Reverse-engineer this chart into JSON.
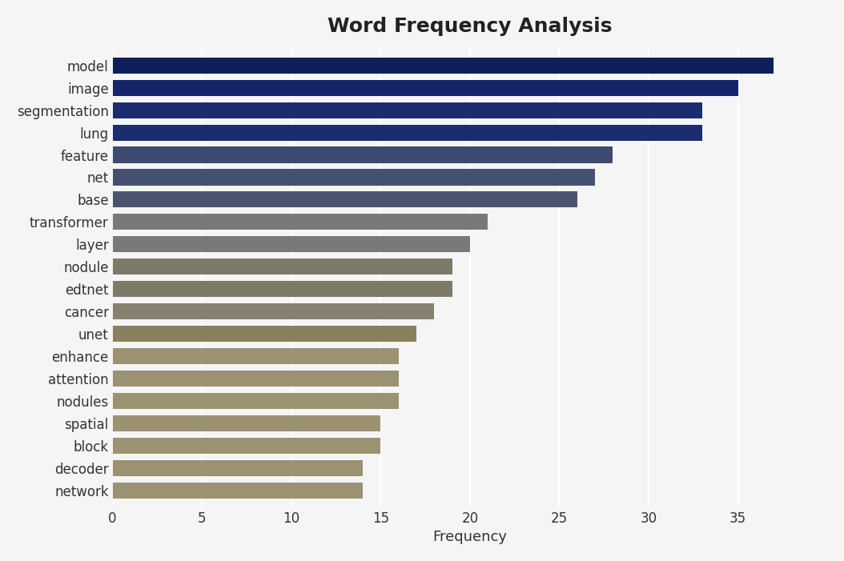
{
  "title": "Word Frequency Analysis",
  "xlabel": "Frequency",
  "categories": [
    "network",
    "decoder",
    "block",
    "spatial",
    "nodules",
    "attention",
    "enhance",
    "unet",
    "cancer",
    "edtnet",
    "nodule",
    "layer",
    "transformer",
    "base",
    "net",
    "feature",
    "lung",
    "segmentation",
    "image",
    "model"
  ],
  "values": [
    14,
    14,
    15,
    15,
    16,
    16,
    16,
    17,
    18,
    19,
    19,
    20,
    21,
    26,
    27,
    28,
    33,
    33,
    35,
    37
  ],
  "bar_colors": [
    "#9b9272",
    "#9b9272",
    "#9b9272",
    "#9b9272",
    "#9b9272",
    "#9b9272",
    "#9b9272",
    "#8a8060",
    "#858070",
    "#7e7a6a",
    "#7e7a6a",
    "#7a7878",
    "#7a7878",
    "#4a5572",
    "#465070",
    "#3d4b6e",
    "#1b2d6e",
    "#1b2d6e",
    "#162569",
    "#0f1f5c"
  ],
  "background_color": "#f5f5f5",
  "plot_bg_color": "#f0f0f0",
  "title_fontsize": 18,
  "axis_label_fontsize": 13,
  "tick_fontsize": 12,
  "xlim": [
    0,
    40
  ],
  "xticks": [
    0,
    5,
    10,
    15,
    20,
    25,
    30,
    35
  ]
}
